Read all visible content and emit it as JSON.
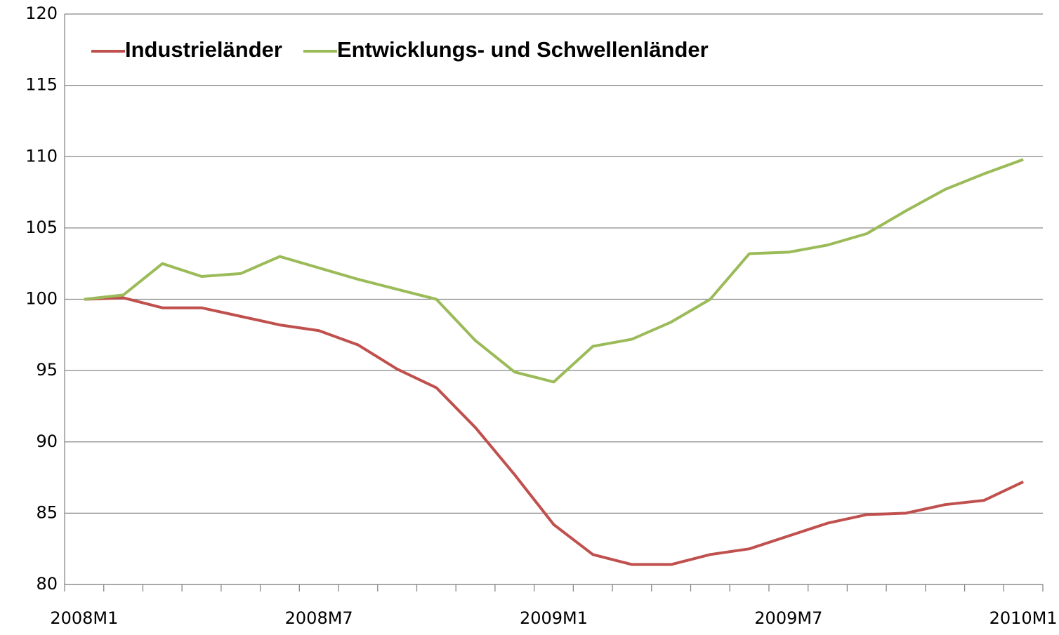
{
  "chart_data": {
    "type": "line",
    "categories": [
      "2008M1",
      null,
      null,
      null,
      null,
      null,
      "2008M7",
      null,
      null,
      null,
      null,
      null,
      "2009M1",
      null,
      null,
      null,
      null,
      null,
      "2009M7",
      null,
      null,
      null,
      null,
      null,
      "2010M1"
    ],
    "series": [
      {
        "name": "Industrieländer",
        "color": "#c0504d",
        "values": [
          100,
          100.1,
          99.4,
          99.4,
          98.8,
          98.2,
          97.8,
          96.8,
          95.1,
          93.8,
          91.0,
          87.7,
          84.2,
          82.1,
          81.4,
          81.4,
          82.1,
          82.5,
          83.4,
          84.3,
          84.9,
          85.0,
          85.6,
          85.9,
          87.2
        ]
      },
      {
        "name": "Entwicklungs- und Schwellenländer",
        "color": "#9bbb59",
        "values": [
          100,
          100.3,
          102.5,
          101.6,
          101.8,
          103.0,
          102.2,
          101.4,
          100.7,
          100.0,
          97.1,
          94.9,
          94.2,
          96.7,
          97.2,
          98.4,
          100.0,
          103.2,
          103.3,
          103.8,
          104.6,
          106.2,
          107.7,
          108.8,
          109.8
        ]
      }
    ],
    "ylim": [
      80,
      120
    ],
    "yticks": [
      80,
      85,
      90,
      95,
      100,
      105,
      110,
      115,
      120
    ],
    "grid": true,
    "legend": "top-left"
  }
}
